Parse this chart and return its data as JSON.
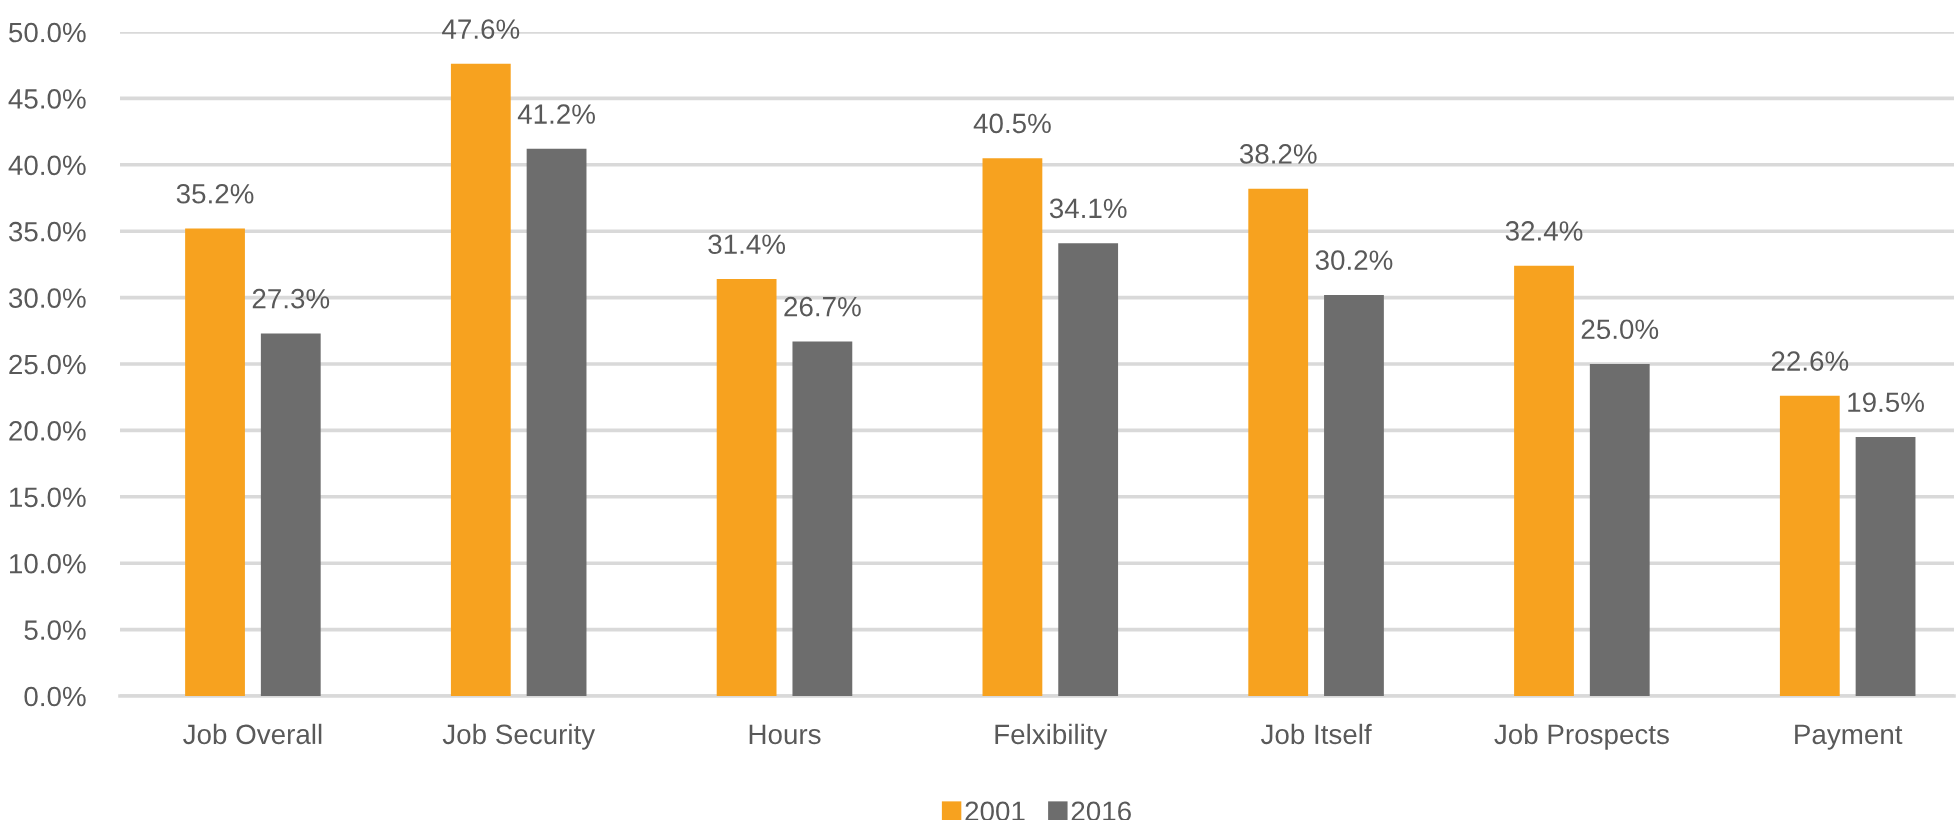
{
  "chart_data": {
    "type": "bar",
    "categories": [
      "Job Overall",
      "Job Security",
      "Hours",
      "Felxibility",
      "Job Itself",
      "Job Prospects",
      "Payment"
    ],
    "series": [
      {
        "name": "2001",
        "color": "#f7a21f",
        "values": [
          35.2,
          47.6,
          31.4,
          40.5,
          38.2,
          32.4,
          22.6
        ],
        "value_labels": [
          "35.2%",
          "47.6%",
          "31.4%",
          "40.5%",
          "38.2%",
          "32.4%",
          "22.6%"
        ]
      },
      {
        "name": "2016",
        "color": "#6d6d6d",
        "values": [
          27.3,
          41.2,
          26.7,
          34.1,
          30.2,
          25.0,
          19.5
        ],
        "value_labels": [
          "27.3%",
          "41.2%",
          "26.7%",
          "34.1%",
          "30.2%",
          "25.0%",
          "19.5%"
        ]
      }
    ],
    "ylim": [
      0,
      50
    ],
    "yticks": [
      {
        "value": 0,
        "label": "0.0%"
      },
      {
        "value": 5,
        "label": "5.0%"
      },
      {
        "value": 10,
        "label": "10.0%"
      },
      {
        "value": 15,
        "label": "15.0%"
      },
      {
        "value": 20,
        "label": "20.0%"
      },
      {
        "value": 25,
        "label": "25.0%"
      },
      {
        "value": 30,
        "label": "30.0%"
      },
      {
        "value": 35,
        "label": "35.0%"
      },
      {
        "value": 40,
        "label": "40.0%"
      },
      {
        "value": 45,
        "label": "45.0%"
      },
      {
        "value": 50,
        "label": "50.0%"
      }
    ],
    "grid": "y",
    "legend": "bottom"
  }
}
